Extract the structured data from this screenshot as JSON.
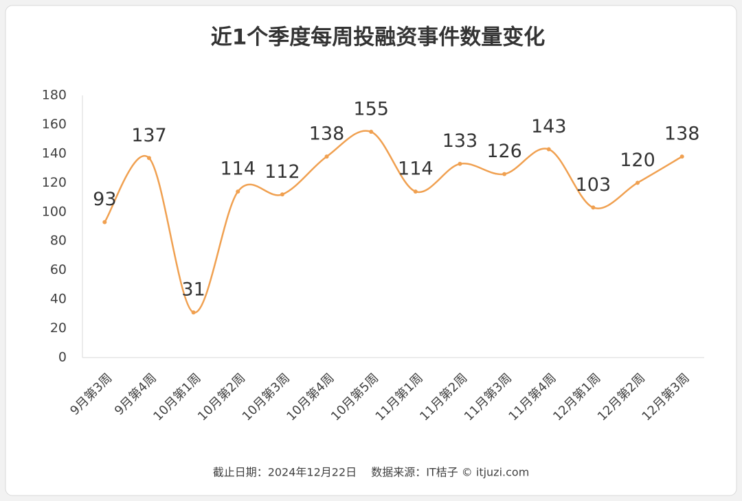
{
  "chart_data": {
    "type": "line",
    "title": "近1个季度每周投融资事件数量变化",
    "categories": [
      "9月第3周",
      "9月第4周",
      "10月第1周",
      "10月第2周",
      "10月第3周",
      "10月第4周",
      "10月第5周",
      "11月第1周",
      "11月第2周",
      "11月第3周",
      "11月第4周",
      "12月第1周",
      "12月第2周",
      "12月第3周"
    ],
    "values": [
      93,
      137,
      31,
      114,
      112,
      138,
      155,
      114,
      133,
      126,
      143,
      103,
      120,
      138
    ],
    "color": "#f0a050",
    "ylim": [
      0,
      180
    ],
    "yticks": [
      0,
      20,
      40,
      60,
      80,
      100,
      120,
      140,
      160,
      180
    ],
    "footnote": "截止日期：2024年12月22日　 数据来源：IT桔子 © itjuzi.com"
  }
}
